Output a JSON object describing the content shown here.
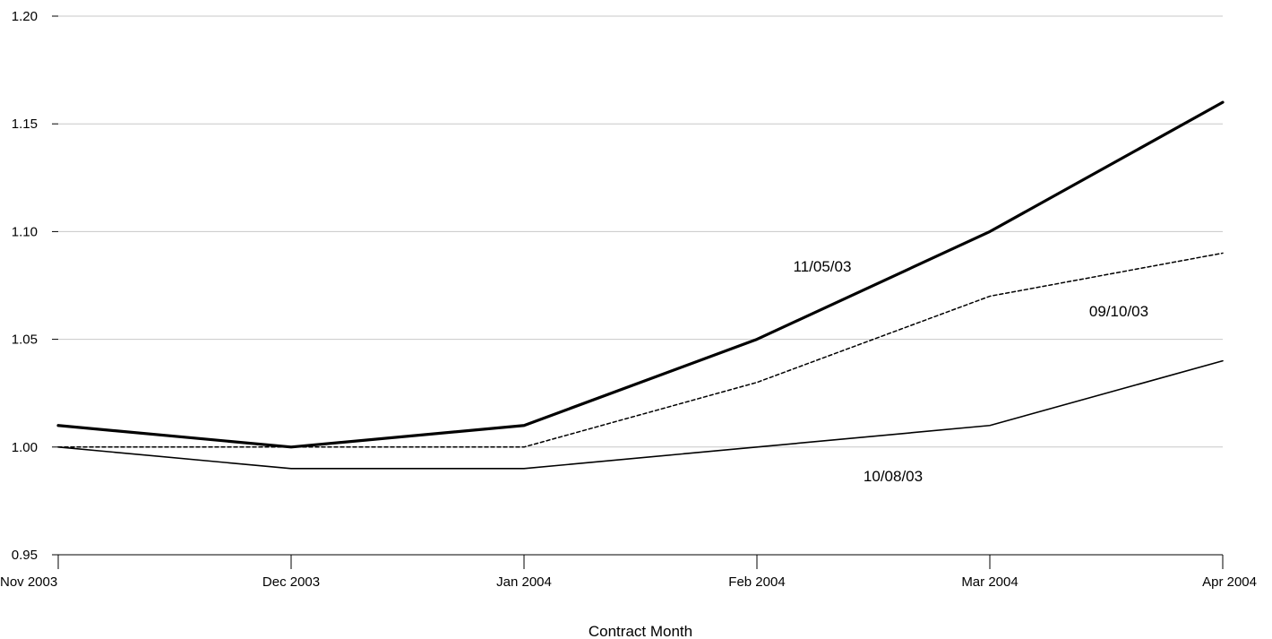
{
  "chart_data": {
    "type": "line",
    "title": "",
    "xlabel": "Contract Month",
    "ylabel": "",
    "categories": [
      "Nov 2003",
      "Dec 2003",
      "Jan 2004",
      "Feb 2004",
      "Mar 2004",
      "Apr 2004"
    ],
    "y_ticks": [
      "0.95",
      "1.00",
      "1.05",
      "1.10",
      "1.15",
      "1.20"
    ],
    "ylim": [
      0.95,
      1.2
    ],
    "grid": true,
    "legend": "none",
    "series": [
      {
        "name": "11/05/03",
        "values": [
          1.01,
          1.0,
          1.01,
          1.05,
          1.1,
          1.16
        ],
        "style": "solid-thick",
        "color": "#000000"
      },
      {
        "name": "09/10/03",
        "values": [
          1.0,
          1.0,
          1.0,
          1.03,
          1.07,
          1.09
        ],
        "style": "dashed",
        "color": "#000000"
      },
      {
        "name": "10/08/03",
        "values": [
          1.0,
          0.99,
          0.99,
          1.0,
          1.01,
          1.04
        ],
        "style": "solid-thin",
        "color": "#000000"
      }
    ]
  }
}
